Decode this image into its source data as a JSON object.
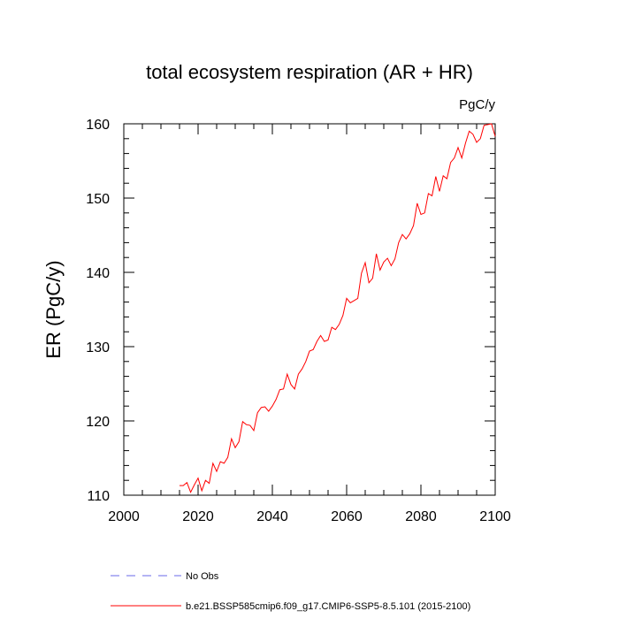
{
  "chart_data": {
    "type": "line",
    "title": "total ecosystem respiration (AR + HR)",
    "units": "PgC/y",
    "xlabel": "",
    "ylabel": "ER  (PgC/y)",
    "xlim": [
      2000,
      2100
    ],
    "ylim": [
      110,
      160
    ],
    "xticks": [
      2000,
      2020,
      2040,
      2060,
      2080,
      2100
    ],
    "yticks": [
      110,
      120,
      130,
      140,
      150,
      160
    ],
    "grid": false,
    "legend_position": "bottom",
    "series": [
      {
        "name": "No Obs",
        "color": "#6a6ae8",
        "dash": "dashed",
        "x": [],
        "y": []
      },
      {
        "name": "b.e21.BSSP585cmip6.f09_g17.CMIP6-SSP5-8.5.101 (2015-2100)",
        "color": "#ff0000",
        "dash": "solid",
        "x": [
          2015,
          2016,
          2017,
          2018,
          2019,
          2020,
          2021,
          2022,
          2023,
          2024,
          2025,
          2026,
          2027,
          2028,
          2029,
          2030,
          2031,
          2032,
          2033,
          2034,
          2035,
          2036,
          2037,
          2038,
          2039,
          2040,
          2041,
          2042,
          2043,
          2044,
          2045,
          2046,
          2047,
          2048,
          2049,
          2050,
          2051,
          2052,
          2053,
          2054,
          2055,
          2056,
          2057,
          2058,
          2059,
          2060,
          2061,
          2062,
          2063,
          2064,
          2065,
          2066,
          2067,
          2068,
          2069,
          2070,
          2071,
          2072,
          2073,
          2074,
          2075,
          2076,
          2077,
          2078,
          2079,
          2080,
          2081,
          2082,
          2083,
          2084,
          2085,
          2086,
          2087,
          2088,
          2089,
          2090,
          2091,
          2092,
          2093,
          2094,
          2095,
          2096,
          2097,
          2098,
          2099,
          2100
        ],
        "y": [
          111.3,
          111.3,
          111.7,
          110.4,
          111.4,
          112.3,
          110.6,
          112.0,
          111.6,
          114.3,
          113.2,
          114.5,
          114.3,
          115.1,
          117.6,
          116.4,
          117.2,
          119.9,
          119.5,
          119.4,
          118.7,
          121.1,
          121.8,
          121.9,
          121.3,
          122.0,
          122.9,
          124.2,
          124.3,
          126.3,
          124.9,
          124.3,
          126.3,
          127.0,
          128.0,
          129.4,
          129.6,
          130.7,
          131.5,
          130.7,
          130.9,
          132.6,
          132.3,
          133.0,
          134.2,
          136.5,
          135.9,
          136.2,
          136.5,
          139.9,
          141.3,
          138.6,
          139.2,
          142.5,
          140.3,
          141.4,
          141.9,
          140.9,
          141.8,
          144.0,
          145.1,
          144.5,
          145.2,
          146.3,
          149.3,
          147.8,
          148.0,
          150.6,
          150.3,
          152.9,
          150.9,
          153.0,
          152.6,
          154.8,
          155.4,
          156.8,
          155.4,
          157.4,
          159.0,
          158.6,
          157.5,
          158.0,
          159.8,
          159.9,
          160.0,
          158.3
        ]
      }
    ]
  }
}
